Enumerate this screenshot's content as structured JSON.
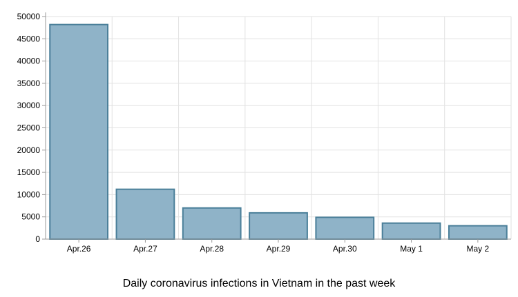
{
  "chart_data": {
    "type": "bar",
    "title": "Daily coronavirus infections in Vietnam in the past week",
    "xlabel": "",
    "ylabel": "",
    "categories": [
      "Apr.26",
      "Apr.27",
      "Apr.28",
      "Apr.29",
      "Apr.30",
      "May 1",
      "May 2"
    ],
    "values": [
      48200,
      11200,
      7000,
      5900,
      4900,
      3600,
      3000
    ],
    "ylim": [
      0,
      50000
    ],
    "yticks": [
      0,
      5000,
      10000,
      15000,
      20000,
      25000,
      30000,
      35000,
      40000,
      45000,
      50000
    ],
    "grid": true,
    "legend": "none",
    "colors": {
      "bar_fill": "#8fb3c8",
      "bar_stroke": "#4a7f99",
      "grid": "#e2e2e2",
      "axis": "#999999"
    }
  }
}
